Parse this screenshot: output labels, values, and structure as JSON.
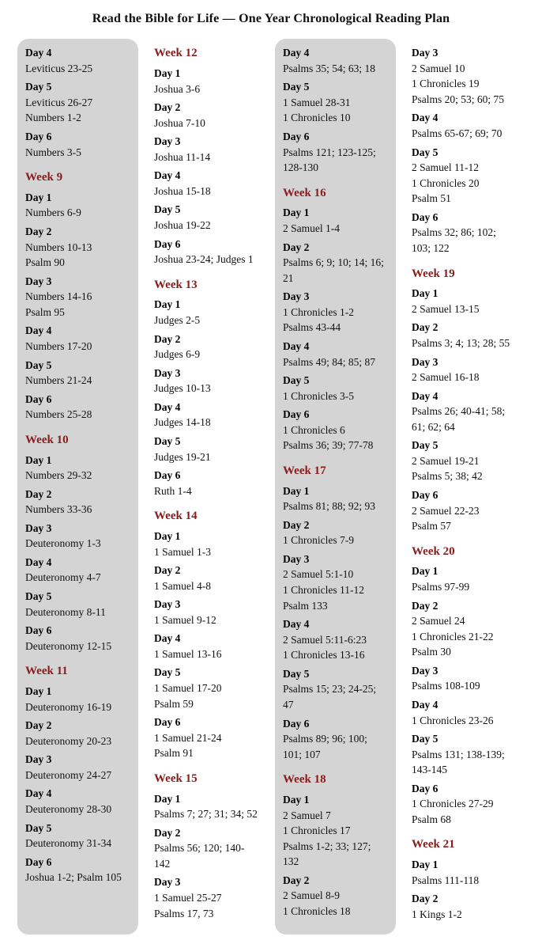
{
  "title": "Read the Bible for Life — One Year Chronological Reading Plan",
  "columns": [
    {
      "shaded": true,
      "items": [
        {
          "type": "day",
          "text": "Day 4"
        },
        {
          "type": "reading",
          "text": "Leviticus 23-25"
        },
        {
          "type": "day",
          "text": "Day 5"
        },
        {
          "type": "reading",
          "text": "Leviticus 26-27"
        },
        {
          "type": "reading",
          "text": "Numbers 1-2"
        },
        {
          "type": "day",
          "text": "Day 6"
        },
        {
          "type": "reading",
          "text": "Numbers 3-5"
        },
        {
          "type": "week",
          "text": "Week 9"
        },
        {
          "type": "day",
          "text": "Day 1"
        },
        {
          "type": "reading",
          "text": "Numbers 6-9"
        },
        {
          "type": "day",
          "text": "Day 2"
        },
        {
          "type": "reading",
          "text": "Numbers 10-13"
        },
        {
          "type": "reading",
          "text": "Psalm 90"
        },
        {
          "type": "day",
          "text": "Day 3"
        },
        {
          "type": "reading",
          "text": "Numbers 14-16"
        },
        {
          "type": "reading",
          "text": "Psalm 95"
        },
        {
          "type": "day",
          "text": "Day 4"
        },
        {
          "type": "reading",
          "text": "Numbers 17-20"
        },
        {
          "type": "day",
          "text": "Day 5"
        },
        {
          "type": "reading",
          "text": "Numbers 21-24"
        },
        {
          "type": "day",
          "text": "Day 6"
        },
        {
          "type": "reading",
          "text": "Numbers 25-28"
        },
        {
          "type": "week",
          "text": "Week 10"
        },
        {
          "type": "day",
          "text": "Day 1"
        },
        {
          "type": "reading",
          "text": "Numbers 29-32"
        },
        {
          "type": "day",
          "text": "Day 2"
        },
        {
          "type": "reading",
          "text": "Numbers 33-36"
        },
        {
          "type": "day",
          "text": "Day 3"
        },
        {
          "type": "reading",
          "text": "Deuteronomy 1-3"
        },
        {
          "type": "day",
          "text": "Day 4"
        },
        {
          "type": "reading",
          "text": "Deuteronomy 4-7"
        },
        {
          "type": "day",
          "text": "Day 5"
        },
        {
          "type": "reading",
          "text": "Deuteronomy 8-11"
        },
        {
          "type": "day",
          "text": "Day 6"
        },
        {
          "type": "reading",
          "text": "Deuteronomy 12-15"
        },
        {
          "type": "week",
          "text": "Week 11"
        },
        {
          "type": "day",
          "text": "Day 1"
        },
        {
          "type": "reading",
          "text": "Deuteronomy 16-19"
        },
        {
          "type": "day",
          "text": "Day 2"
        },
        {
          "type": "reading",
          "text": "Deuteronomy 20-23"
        },
        {
          "type": "day",
          "text": "Day 3"
        },
        {
          "type": "reading",
          "text": "Deuteronomy 24-27"
        },
        {
          "type": "day",
          "text": "Day 4"
        },
        {
          "type": "reading",
          "text": "Deuteronomy 28-30"
        },
        {
          "type": "day",
          "text": "Day 5"
        },
        {
          "type": "reading",
          "text": "Deuteronomy 31-34"
        },
        {
          "type": "day",
          "text": "Day 6"
        },
        {
          "type": "reading",
          "text": "Joshua 1-2; Psalm 105"
        }
      ]
    },
    {
      "shaded": false,
      "items": [
        {
          "type": "week",
          "text": "Week 12"
        },
        {
          "type": "day",
          "text": "Day 1"
        },
        {
          "type": "reading",
          "text": "Joshua 3-6"
        },
        {
          "type": "day",
          "text": "Day 2"
        },
        {
          "type": "reading",
          "text": "Joshua 7-10"
        },
        {
          "type": "day",
          "text": "Day 3"
        },
        {
          "type": "reading",
          "text": "Joshua 11-14"
        },
        {
          "type": "day",
          "text": "Day 4"
        },
        {
          "type": "reading",
          "text": "Joshua 15-18"
        },
        {
          "type": "day",
          "text": "Day 5"
        },
        {
          "type": "reading",
          "text": "Joshua 19-22"
        },
        {
          "type": "day",
          "text": "Day 6"
        },
        {
          "type": "reading",
          "text": "Joshua 23-24; Judges 1"
        },
        {
          "type": "week",
          "text": "Week 13"
        },
        {
          "type": "day",
          "text": "Day 1"
        },
        {
          "type": "reading",
          "text": "Judges 2-5"
        },
        {
          "type": "day",
          "text": "Day 2"
        },
        {
          "type": "reading",
          "text": "Judges 6-9"
        },
        {
          "type": "day",
          "text": "Day 3"
        },
        {
          "type": "reading",
          "text": "Judges 10-13"
        },
        {
          "type": "day",
          "text": "Day 4"
        },
        {
          "type": "reading",
          "text": "Judges 14-18"
        },
        {
          "type": "day",
          "text": "Day 5"
        },
        {
          "type": "reading",
          "text": "Judges 19-21"
        },
        {
          "type": "day",
          "text": "Day 6"
        },
        {
          "type": "reading",
          "text": "Ruth 1-4"
        },
        {
          "type": "week",
          "text": "Week 14"
        },
        {
          "type": "day",
          "text": "Day 1"
        },
        {
          "type": "reading",
          "text": "1 Samuel 1-3"
        },
        {
          "type": "day",
          "text": "Day 2"
        },
        {
          "type": "reading",
          "text": "1 Samuel 4-8"
        },
        {
          "type": "day",
          "text": "Day 3"
        },
        {
          "type": "reading",
          "text": "1 Samuel 9-12"
        },
        {
          "type": "day",
          "text": "Day 4"
        },
        {
          "type": "reading",
          "text": "1 Samuel 13-16"
        },
        {
          "type": "day",
          "text": "Day 5"
        },
        {
          "type": "reading",
          "text": "1 Samuel 17-20"
        },
        {
          "type": "reading",
          "text": "Psalm 59"
        },
        {
          "type": "day",
          "text": "Day 6"
        },
        {
          "type": "reading",
          "text": "1 Samuel 21-24"
        },
        {
          "type": "reading",
          "text": "Psalm 91"
        },
        {
          "type": "week",
          "text": "Week 15"
        },
        {
          "type": "day",
          "text": "Day 1"
        },
        {
          "type": "reading",
          "text": "Psalms 7; 27; 31; 34; 52"
        },
        {
          "type": "day",
          "text": "Day 2"
        },
        {
          "type": "reading",
          "text": "Psalms 56; 120; 140-142"
        },
        {
          "type": "day",
          "text": "Day 3"
        },
        {
          "type": "reading",
          "text": "1 Samuel 25-27"
        },
        {
          "type": "reading",
          "text": "Psalms 17, 73"
        }
      ]
    },
    {
      "shaded": true,
      "items": [
        {
          "type": "day",
          "text": "Day 4"
        },
        {
          "type": "reading",
          "text": "Psalms 35; 54; 63; 18"
        },
        {
          "type": "day",
          "text": "Day 5"
        },
        {
          "type": "reading",
          "text": "1 Samuel 28-31"
        },
        {
          "type": "reading",
          "text": "1 Chronicles 10"
        },
        {
          "type": "day",
          "text": "Day 6"
        },
        {
          "type": "reading",
          "text": "Psalms 121; 123-125; 128-130"
        },
        {
          "type": "week",
          "text": "Week 16"
        },
        {
          "type": "day",
          "text": "Day 1"
        },
        {
          "type": "reading",
          "text": "2 Samuel 1-4"
        },
        {
          "type": "day",
          "text": "Day 2"
        },
        {
          "type": "reading",
          "text": "Psalms 6; 9; 10; 14; 16; 21"
        },
        {
          "type": "day",
          "text": "Day 3"
        },
        {
          "type": "reading",
          "text": "1 Chronicles 1-2"
        },
        {
          "type": "reading",
          "text": "Psalms 43-44"
        },
        {
          "type": "day",
          "text": "Day 4"
        },
        {
          "type": "reading",
          "text": "Psalms 49; 84; 85; 87"
        },
        {
          "type": "day",
          "text": "Day 5"
        },
        {
          "type": "reading",
          "text": "1 Chronicles 3-5"
        },
        {
          "type": "day",
          "text": "Day 6"
        },
        {
          "type": "reading",
          "text": "1 Chronicles 6"
        },
        {
          "type": "reading",
          "text": "Psalms 36; 39; 77-78"
        },
        {
          "type": "week",
          "text": "Week 17"
        },
        {
          "type": "day",
          "text": "Day 1"
        },
        {
          "type": "reading",
          "text": "Psalms 81; 88; 92; 93"
        },
        {
          "type": "day",
          "text": "Day 2"
        },
        {
          "type": "reading",
          "text": "1 Chronicles 7-9"
        },
        {
          "type": "day",
          "text": "Day 3"
        },
        {
          "type": "reading",
          "text": "2 Samuel 5:1-10"
        },
        {
          "type": "reading",
          "text": "1 Chronicles 11-12"
        },
        {
          "type": "reading",
          "text": "Psalm 133"
        },
        {
          "type": "day",
          "text": "Day 4"
        },
        {
          "type": "reading",
          "text": "2 Samuel 5:11-6:23"
        },
        {
          "type": "reading",
          "text": "1 Chronicles 13-16"
        },
        {
          "type": "day",
          "text": "Day 5"
        },
        {
          "type": "reading",
          "text": "Psalms 15; 23; 24-25; 47"
        },
        {
          "type": "day",
          "text": "Day 6"
        },
        {
          "type": "reading",
          "text": "Psalms 89; 96; 100; 101; 107"
        },
        {
          "type": "week",
          "text": "Week 18"
        },
        {
          "type": "day",
          "text": "Day 1"
        },
        {
          "type": "reading",
          "text": "2 Samuel 7"
        },
        {
          "type": "reading",
          "text": "1 Chronicles 17"
        },
        {
          "type": "reading",
          "text": "Psalms 1-2; 33; 127; 132"
        },
        {
          "type": "day",
          "text": "Day 2"
        },
        {
          "type": "reading",
          "text": "2 Samuel 8-9"
        },
        {
          "type": "reading",
          "text": "1 Chronicles 18"
        }
      ]
    },
    {
      "shaded": false,
      "items": [
        {
          "type": "day",
          "text": "Day 3"
        },
        {
          "type": "reading",
          "text": "2 Samuel 10"
        },
        {
          "type": "reading",
          "text": "1 Chronicles 19"
        },
        {
          "type": "reading",
          "text": "Psalms 20; 53; 60; 75"
        },
        {
          "type": "day",
          "text": "Day 4"
        },
        {
          "type": "reading",
          "text": "Psalms 65-67; 69; 70"
        },
        {
          "type": "day",
          "text": "Day 5"
        },
        {
          "type": "reading",
          "text": "2 Samuel 11-12"
        },
        {
          "type": "reading",
          "text": "1 Chronicles 20"
        },
        {
          "type": "reading",
          "text": "Psalm 51"
        },
        {
          "type": "day",
          "text": "Day 6"
        },
        {
          "type": "reading",
          "text": "Psalms 32; 86; 102; 103; 122"
        },
        {
          "type": "week",
          "text": "Week 19"
        },
        {
          "type": "day",
          "text": "Day 1"
        },
        {
          "type": "reading",
          "text": "2 Samuel 13-15"
        },
        {
          "type": "day",
          "text": "Day 2"
        },
        {
          "type": "reading",
          "text": "Psalms 3; 4; 13; 28; 55"
        },
        {
          "type": "day",
          "text": "Day 3"
        },
        {
          "type": "reading",
          "text": "2 Samuel 16-18"
        },
        {
          "type": "day",
          "text": "Day 4"
        },
        {
          "type": "reading",
          "text": "Psalms 26; 40-41; 58; 61; 62; 64"
        },
        {
          "type": "day",
          "text": "Day 5"
        },
        {
          "type": "reading",
          "text": "2 Samuel 19-21"
        },
        {
          "type": "reading",
          "text": "Psalms 5; 38; 42"
        },
        {
          "type": "day",
          "text": "Day 6"
        },
        {
          "type": "reading",
          "text": "2 Samuel 22-23"
        },
        {
          "type": "reading",
          "text": "Psalm 57"
        },
        {
          "type": "week",
          "text": "Week 20"
        },
        {
          "type": "day",
          "text": "Day 1"
        },
        {
          "type": "reading",
          "text": "Psalms 97-99"
        },
        {
          "type": "day",
          "text": "Day 2"
        },
        {
          "type": "reading",
          "text": "2 Samuel 24"
        },
        {
          "type": "reading",
          "text": "1 Chronicles 21-22"
        },
        {
          "type": "reading",
          "text": "Psalm 30"
        },
        {
          "type": "day",
          "text": "Day 3"
        },
        {
          "type": "reading",
          "text": "Psalms 108-109"
        },
        {
          "type": "day",
          "text": "Day 4"
        },
        {
          "type": "reading",
          "text": "1 Chronicles 23-26"
        },
        {
          "type": "day",
          "text": "Day 5"
        },
        {
          "type": "reading",
          "text": "Psalms 131; 138-139; 143-145"
        },
        {
          "type": "day",
          "text": "Day 6"
        },
        {
          "type": "reading",
          "text": "1 Chronicles 27-29"
        },
        {
          "type": "reading",
          "text": "Psalm 68"
        },
        {
          "type": "week",
          "text": "Week 21"
        },
        {
          "type": "day",
          "text": "Day 1"
        },
        {
          "type": "reading",
          "text": "Psalms 111-118"
        },
        {
          "type": "day",
          "text": "Day 2"
        },
        {
          "type": "reading",
          "text": "1 Kings 1-2"
        }
      ]
    }
  ]
}
